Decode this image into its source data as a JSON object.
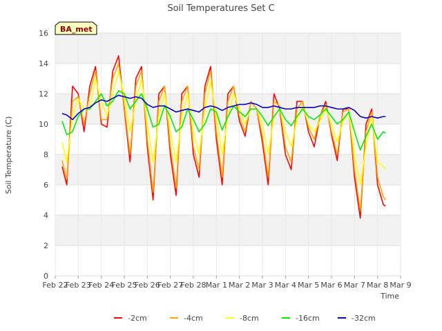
{
  "chart_data": {
    "type": "line",
    "title": "Soil Temperatures Set C",
    "xlabel": "Time",
    "ylabel": "Soil Temperature (C)",
    "ylim": [
      0,
      16
    ],
    "yticks": [
      0,
      2,
      4,
      6,
      8,
      10,
      12,
      14,
      16
    ],
    "xlim": [
      0,
      15
    ],
    "xticks": [
      0,
      1,
      2,
      3,
      4,
      5,
      6,
      7,
      8,
      9,
      10,
      11,
      12,
      13,
      14,
      15
    ],
    "xtick_labels": [
      "Feb 22",
      "Feb 23",
      "Feb 24",
      "Feb 25",
      "Feb 26",
      "Feb 27",
      "Feb 28",
      "Mar 1",
      "Mar 2",
      "Mar 3",
      "Mar 4",
      "Mar 5",
      "Mar 6",
      "Mar 7",
      "Mar 8",
      "Mar 9"
    ],
    "grid": true,
    "legend_position": "bottom",
    "badge": "BA_met",
    "x": [
      0.3,
      0.5,
      0.75,
      1.0,
      1.25,
      1.5,
      1.75,
      2.0,
      2.25,
      2.5,
      2.75,
      3.0,
      3.25,
      3.5,
      3.75,
      4.0,
      4.25,
      4.5,
      4.75,
      5.0,
      5.25,
      5.5,
      5.75,
      6.0,
      6.25,
      6.5,
      6.75,
      7.0,
      7.25,
      7.5,
      7.75,
      8.0,
      8.25,
      8.5,
      8.75,
      9.0,
      9.25,
      9.5,
      9.75,
      10.0,
      10.25,
      10.5,
      10.75,
      11.0,
      11.25,
      11.5,
      11.75,
      12.0,
      12.25,
      12.5,
      12.75,
      13.0,
      13.25,
      13.5,
      13.75,
      14.0,
      14.25,
      14.35
    ],
    "series": [
      {
        "name": "-2cm",
        "color": "#ff0000",
        "values": [
          7.2,
          6.0,
          12.5,
          12.0,
          9.5,
          12.5,
          13.8,
          10.0,
          9.8,
          13.5,
          14.5,
          11.0,
          7.5,
          13.0,
          13.8,
          8.5,
          5.0,
          12.0,
          12.5,
          8.0,
          5.3,
          12.0,
          12.5,
          8.0,
          6.5,
          12.5,
          13.8,
          9.0,
          6.0,
          12.0,
          12.5,
          10.2,
          9.2,
          11.5,
          11.0,
          8.8,
          6.0,
          12.0,
          11.0,
          8.0,
          7.0,
          11.5,
          11.5,
          9.5,
          8.5,
          10.5,
          11.5,
          9.3,
          7.6,
          11.0,
          11.0,
          6.5,
          3.8,
          10.0,
          11.0,
          6.0,
          4.7,
          4.6
        ]
      },
      {
        "name": "-4cm",
        "color": "#ffa500",
        "values": [
          7.6,
          6.4,
          11.5,
          11.8,
          10.0,
          12.0,
          13.5,
          10.3,
          10.3,
          13.0,
          14.0,
          11.2,
          8.0,
          12.5,
          13.5,
          9.0,
          5.5,
          11.5,
          12.5,
          8.5,
          5.8,
          11.5,
          12.5,
          8.5,
          7.0,
          12.0,
          13.5,
          9.5,
          6.5,
          11.5,
          12.5,
          10.5,
          9.5,
          11.5,
          11.0,
          9.2,
          6.5,
          11.5,
          11.2,
          8.5,
          7.5,
          11.0,
          11.5,
          9.8,
          9.0,
          10.5,
          11.3,
          9.5,
          8.0,
          10.8,
          11.0,
          7.0,
          4.3,
          9.5,
          10.8,
          6.5,
          5.2,
          5.0
        ]
      },
      {
        "name": "-8cm",
        "color": "#ffff00",
        "values": [
          8.8,
          7.5,
          10.5,
          11.7,
          11.0,
          11.0,
          13.0,
          11.5,
          10.5,
          12.0,
          13.5,
          11.8,
          9.5,
          11.5,
          13.0,
          10.0,
          7.5,
          10.5,
          12.0,
          9.5,
          7.5,
          10.5,
          12.0,
          9.5,
          8.0,
          11.0,
          12.8,
          10.5,
          8.0,
          10.5,
          12.0,
          11.0,
          10.0,
          11.0,
          11.0,
          10.0,
          8.0,
          10.5,
          11.0,
          9.5,
          8.5,
          10.3,
          11.2,
          10.0,
          9.5,
          10.2,
          11.0,
          10.0,
          8.8,
          10.2,
          10.8,
          8.0,
          6.0,
          8.5,
          10.5,
          7.5,
          7.2,
          7.0
        ]
      },
      {
        "name": "-16cm",
        "color": "#00ee00",
        "values": [
          10.2,
          9.3,
          9.5,
          10.5,
          11.0,
          11.0,
          11.5,
          12.0,
          11.2,
          11.5,
          12.2,
          12.0,
          11.0,
          11.5,
          12.0,
          11.0,
          9.8,
          10.0,
          11.2,
          10.5,
          9.5,
          9.8,
          11.0,
          10.3,
          9.5,
          10.0,
          11.0,
          10.8,
          9.6,
          10.5,
          11.2,
          10.8,
          10.5,
          11.0,
          11.0,
          10.5,
          9.9,
          10.5,
          11.0,
          10.3,
          9.9,
          10.5,
          11.0,
          10.5,
          10.3,
          10.6,
          11.0,
          10.5,
          10.0,
          10.3,
          10.8,
          9.5,
          8.3,
          9.2,
          10.0,
          9.0,
          9.5,
          9.4
        ]
      },
      {
        "name": "-32cm",
        "color": "#0000cc",
        "values": [
          10.7,
          10.6,
          10.3,
          10.7,
          11.0,
          11.1,
          11.4,
          11.6,
          11.5,
          11.7,
          11.9,
          11.8,
          11.7,
          11.8,
          11.7,
          11.3,
          11.1,
          11.2,
          11.2,
          11.0,
          10.8,
          10.9,
          11.0,
          10.9,
          10.8,
          11.1,
          11.2,
          11.1,
          10.9,
          11.1,
          11.2,
          11.3,
          11.3,
          11.4,
          11.3,
          11.1,
          11.1,
          11.2,
          11.1,
          11.0,
          11.0,
          11.1,
          11.1,
          11.1,
          11.1,
          11.2,
          11.2,
          11.1,
          11.0,
          11.0,
          11.1,
          10.9,
          10.5,
          10.4,
          10.5,
          10.4,
          10.5,
          10.5
        ]
      }
    ]
  }
}
